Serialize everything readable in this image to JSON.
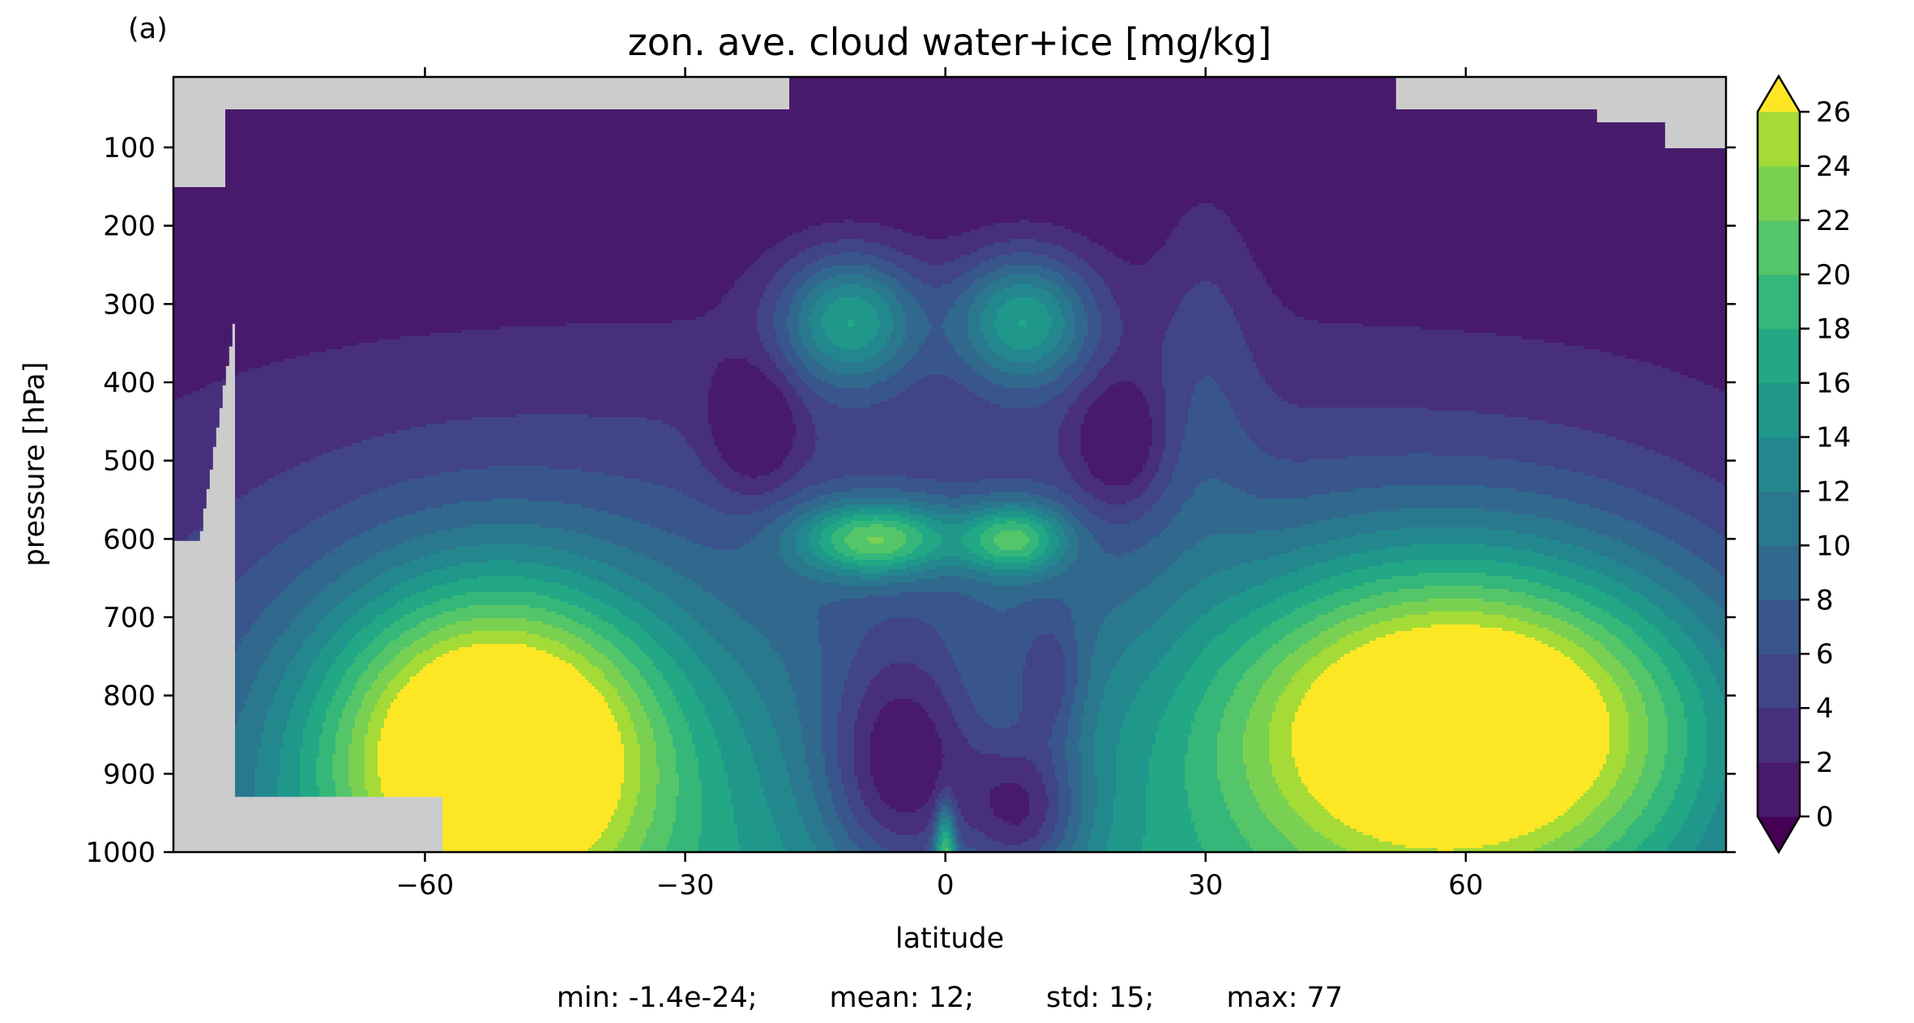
{
  "panel_label": "(a)",
  "stats_text": "min: -1.4e-24;        mean: 12;        std: 15;        max: 77",
  "chart_data": {
    "type": "heatmap",
    "title": "zon. ave. cloud water+ice [mg/kg]",
    "xlabel": "latitude",
    "ylabel": "pressure [hPa]",
    "xlim": [
      -89,
      90
    ],
    "ylim": [
      1000,
      10
    ],
    "y_inverted": true,
    "xticks": [
      -60,
      -30,
      0,
      30,
      60
    ],
    "xtick_labels": [
      "−60",
      "−30",
      "0",
      "30",
      "60"
    ],
    "yticks": [
      100,
      200,
      300,
      400,
      500,
      600,
      700,
      800,
      900,
      1000
    ],
    "colorbar": {
      "levels": [
        0,
        2,
        4,
        6,
        8,
        10,
        12,
        14,
        16,
        18,
        20,
        22,
        24,
        26
      ],
      "tick_labels": [
        "0",
        "2",
        "4",
        "6",
        "8",
        "10",
        "12",
        "14",
        "16",
        "18",
        "20",
        "22",
        "24",
        "26"
      ],
      "extend": "both",
      "colormap": "viridis",
      "colors": [
        "#440154",
        "#481a6c",
        "#472f7d",
        "#414487",
        "#39568c",
        "#31688e",
        "#2a788e",
        "#23888e",
        "#1f988b",
        "#22a884",
        "#35b779",
        "#54c568",
        "#7ad151",
        "#a5db36",
        "#fde725"
      ]
    },
    "missing_color": "#cccccc",
    "stats": {
      "min": "-1.4e-24",
      "mean": "12",
      "std": "15",
      "max": "77"
    }
  }
}
